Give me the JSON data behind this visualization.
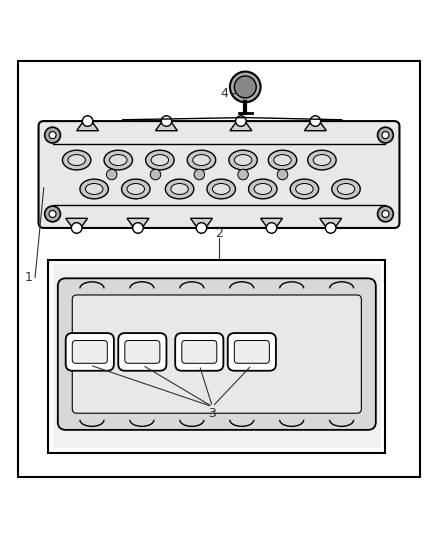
{
  "background_color": "#ffffff",
  "line_color": "#000000",
  "label_color": "#333333",
  "fig_width": 4.38,
  "fig_height": 5.33,
  "dpi": 100
}
